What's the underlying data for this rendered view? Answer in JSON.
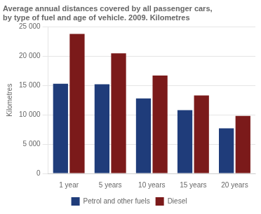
{
  "chart_data": {
    "type": "bar",
    "title": "Average annual distances covered by all passenger cars,\nby type of fuel and age of vehicle. 2009. Kilometres",
    "y_label": "Kilometres",
    "categories": [
      "1 year",
      "5 years",
      "10 years",
      "15 years",
      "20 years"
    ],
    "series": [
      {
        "name": "Petrol and other fuels",
        "color": "#1F3C7A",
        "values": [
          15300,
          15200,
          12800,
          10800,
          7700
        ]
      },
      {
        "name": "Diesel",
        "color": "#7B1A1A",
        "values": [
          23800,
          20500,
          16700,
          13300,
          9800
        ]
      }
    ],
    "ylim": [
      0,
      25000
    ],
    "yticks": [
      0,
      {
        "value": 5000,
        "label": "5 000"
      },
      {
        "value": 10000,
        "label": "10 000"
      },
      {
        "value": 15000,
        "label": "15 000"
      },
      {
        "value": 20000,
        "label": "20 000"
      },
      {
        "value": 25000,
        "label": "25 000"
      }
    ],
    "grid": true,
    "legend": "bottom"
  }
}
